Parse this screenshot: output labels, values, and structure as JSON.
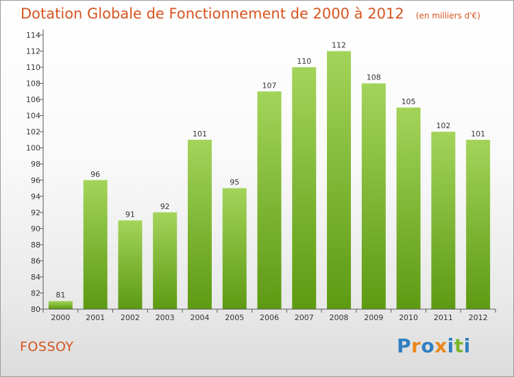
{
  "header": {
    "title": "Dotation Globale de Fonctionnement de 2000 à 2012",
    "unit": "(en milliers d'€)"
  },
  "commune": "FOSSOY",
  "logo": {
    "text": "Proxiti",
    "letters": [
      {
        "char": "P",
        "color": "#2f7fc1"
      },
      {
        "char": "r",
        "color": "#e8871e"
      },
      {
        "char": "o",
        "color": "#2f7fc1"
      },
      {
        "char": "x",
        "color": "#e8871e"
      },
      {
        "char": "i",
        "color": "#2f7fc1"
      },
      {
        "char": "t",
        "color": "#7bb62a"
      },
      {
        "char": "i",
        "color": "#2f7fc1"
      }
    ]
  },
  "colors": {
    "title": "#d6541f",
    "bar_light": "#a3d45a",
    "bar_dark": "#5d9a12",
    "axis": "#555555",
    "text": "#333333"
  },
  "chart_data": {
    "type": "bar",
    "categories": [
      "2000",
      "2001",
      "2002",
      "2003",
      "2004",
      "2005",
      "2006",
      "2007",
      "2008",
      "2009",
      "2010",
      "2011",
      "2012"
    ],
    "values": [
      81,
      96,
      91,
      92,
      101,
      95,
      107,
      110,
      112,
      108,
      105,
      102,
      101
    ],
    "data_labels": [
      "81",
      "96",
      "91",
      "92",
      "101",
      "95",
      "107",
      "110",
      "112",
      "108",
      "105",
      "102",
      "101"
    ],
    "ylim": [
      80,
      114
    ],
    "yticks": [
      80,
      82,
      84,
      86,
      88,
      90,
      92,
      94,
      96,
      98,
      100,
      102,
      104,
      106,
      108,
      110,
      112,
      114
    ],
    "title": "Dotation Globale de Fonctionnement de 2000 à 2012",
    "xlabel": "",
    "ylabel": "",
    "grid": false,
    "legend": "none"
  }
}
